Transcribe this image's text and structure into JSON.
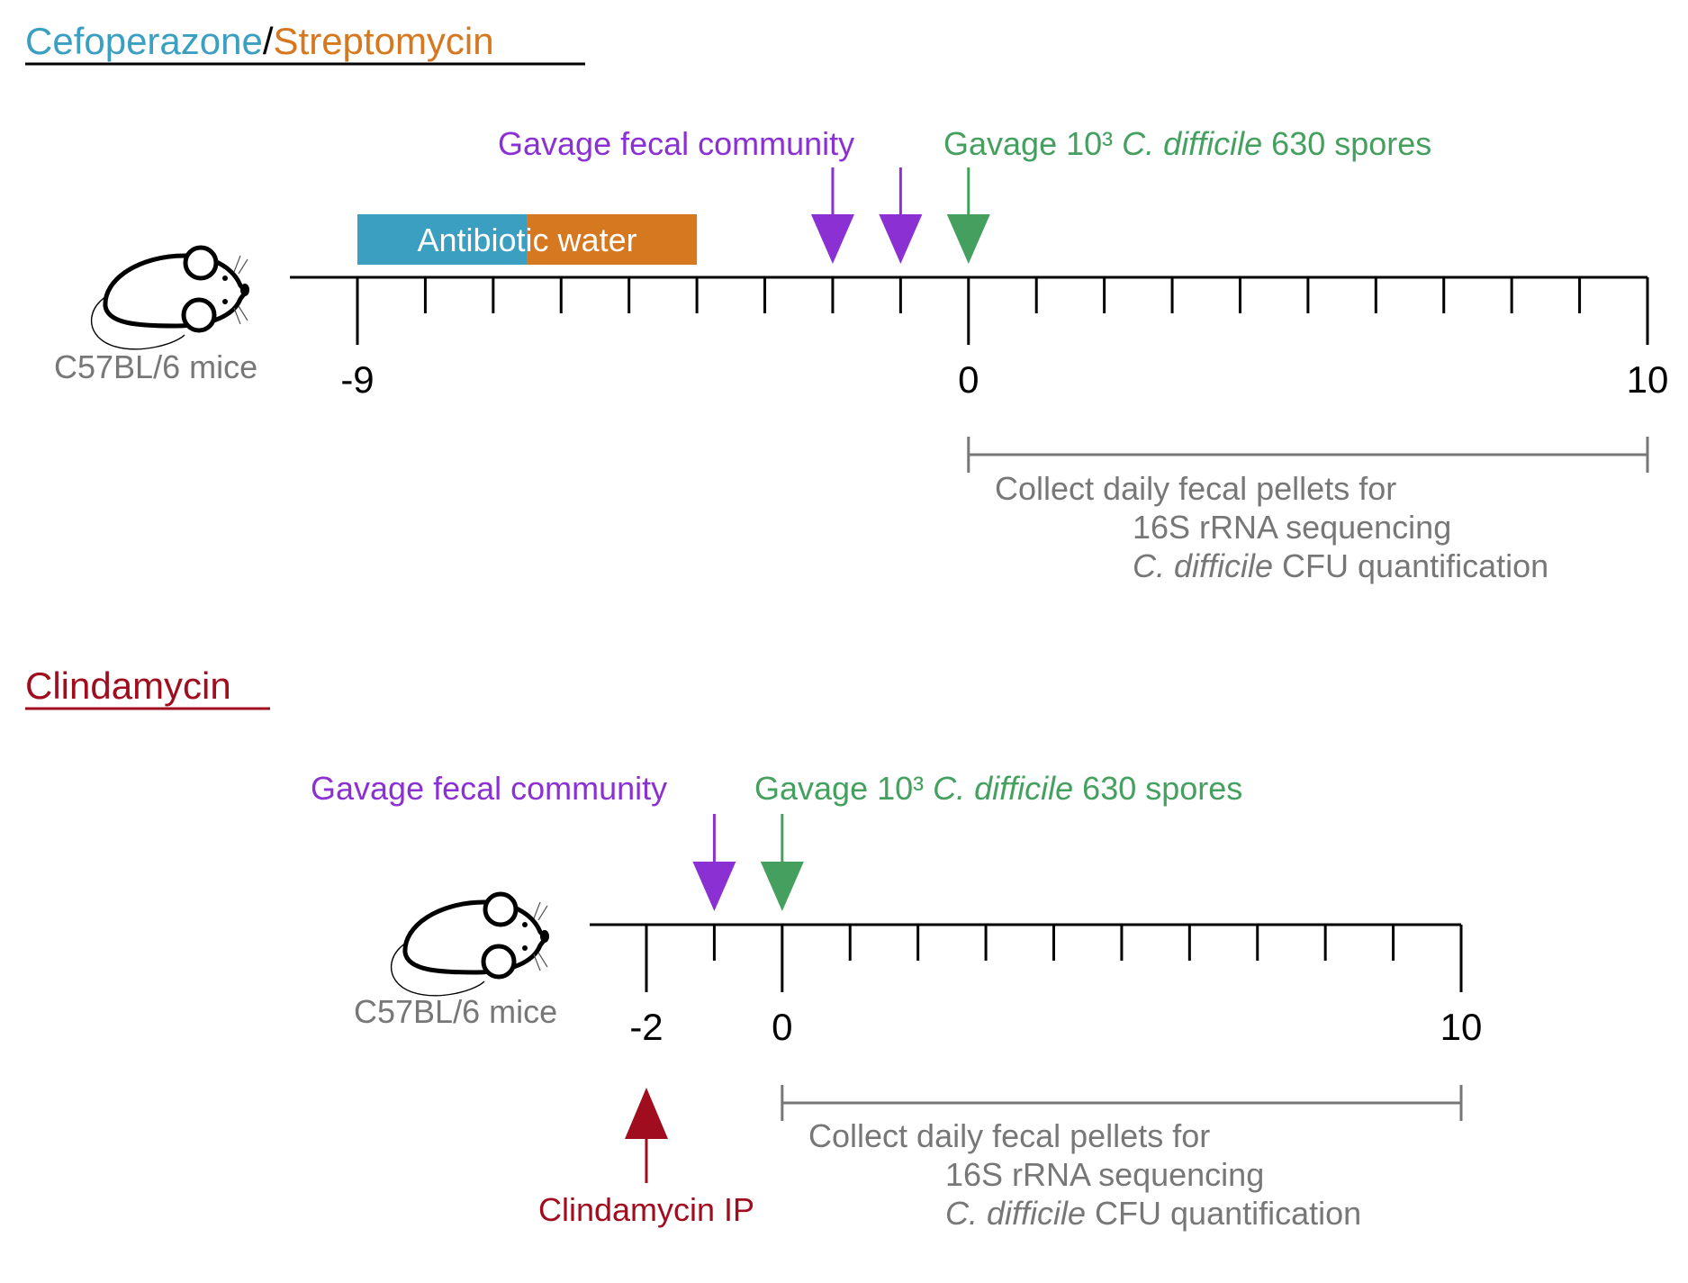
{
  "colors": {
    "cefoperazone": "#3a9fc0",
    "streptomycin": "#d6781f",
    "clindamycin": "#a00d1f",
    "fecal": "#8b30d2",
    "spores": "#45a060",
    "gray": "#777777",
    "axis": "#000000"
  },
  "panel1": {
    "title": {
      "part1": "Cefoperazone",
      "sep": "/",
      "part2": "Streptomycin"
    },
    "mouse_label": "C57BL/6 mice",
    "antibiotic_water_label": "Antibiotic water",
    "fecal_label": "Gavage fecal community",
    "spores_label": {
      "prefix": "Gavage 10³ ",
      "species": "C. difficile",
      "suffix": " 630 spores"
    },
    "axis": {
      "start_day": -9,
      "end_day": 10,
      "tick_labels": [
        "-9",
        "0",
        "10"
      ],
      "labeled_days": [
        -9,
        0,
        10
      ]
    },
    "fecal_gavage_days": [
      -2,
      -1
    ],
    "spore_gavage_day": 0,
    "antibiotic_cefoperazone_days": [
      -9,
      -6.5
    ],
    "antibiotic_streptomycin_days": [
      -6.5,
      -4
    ],
    "collection_days": [
      0,
      10
    ],
    "collect_text": {
      "line1": "Collect daily fecal pellets for",
      "line2": "16S rRNA sequencing",
      "line3_species": "C. difficile",
      "line3_suffix": " CFU quantification"
    }
  },
  "panel2": {
    "title": "Clindamycin",
    "mouse_label": "C57BL/6 mice",
    "fecal_label": "Gavage fecal community",
    "spores_label": {
      "prefix": "Gavage 10³ ",
      "species": "C. difficile",
      "suffix": " 630 spores"
    },
    "axis": {
      "start_day": -2,
      "end_day": 10,
      "tick_labels": [
        "-2",
        "0",
        "10"
      ],
      "labeled_days": [
        -2,
        0,
        10
      ]
    },
    "fecal_gavage_day": -1,
    "spore_gavage_day": 0,
    "ip_day": -2,
    "ip_label": "Clindamycin IP",
    "collection_days": [
      0,
      10
    ],
    "collect_text": {
      "line1": "Collect daily fecal pellets for",
      "line2": "16S rRNA sequencing",
      "line3_species": "C. difficile",
      "line3_suffix": " CFU quantification"
    }
  }
}
